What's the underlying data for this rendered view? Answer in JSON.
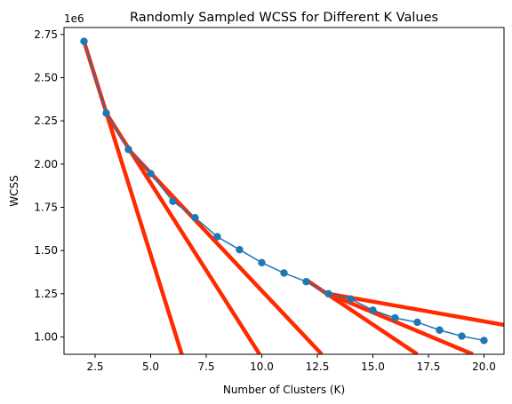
{
  "chart_data": {
    "type": "line",
    "title": "Randomly Sampled WCSS for Different K Values",
    "xlabel": "Number of Clusters (K)",
    "ylabel": "WCSS",
    "offset_text": "1e6",
    "xlim": [
      1.1,
      20.9
    ],
    "ylim": [
      0.9,
      2.79
    ],
    "x_ticks": [
      2.5,
      5.0,
      7.5,
      10.0,
      12.5,
      15.0,
      17.5,
      20.0
    ],
    "x_tick_labels": [
      "2.5",
      "5.0",
      "7.5",
      "10.0",
      "12.5",
      "15.0",
      "17.5",
      "20.0"
    ],
    "y_ticks": [
      1.0,
      1.25,
      1.5,
      1.75,
      2.0,
      2.25,
      2.5,
      2.75
    ],
    "y_tick_labels": [
      "1.00",
      "1.25",
      "1.50",
      "1.75",
      "2.00",
      "2.25",
      "2.50",
      "2.75"
    ],
    "grid": false,
    "series": [
      {
        "x": [
          2,
          3,
          4,
          5,
          6,
          7,
          8,
          9,
          10,
          11,
          12,
          13,
          14,
          15,
          16,
          17,
          18,
          19,
          20
        ],
        "values": [
          2.71,
          2.295,
          2.085,
          1.945,
          1.785,
          1.69,
          1.58,
          1.505,
          1.43,
          1.37,
          1.32,
          1.25,
          1.22,
          1.155,
          1.11,
          1.085,
          1.04,
          1.005,
          0.98
        ],
        "color": "#1f77b4"
      }
    ],
    "tangent_lines": [
      {
        "x": [
          2,
          6.4
        ],
        "values": [
          2.71,
          0.9
        ],
        "color": "#ff2a00"
      },
      {
        "x": [
          3,
          9.9
        ],
        "values": [
          2.295,
          0.9
        ],
        "color": "#ff2a00"
      },
      {
        "x": [
          4,
          12.7
        ],
        "values": [
          2.085,
          0.9
        ],
        "color": "#ff2a00"
      },
      {
        "x": [
          12,
          17.0
        ],
        "values": [
          1.33,
          0.9
        ],
        "color": "#ff2a00"
      },
      {
        "x": [
          13,
          19.5
        ],
        "values": [
          1.25,
          0.9
        ],
        "color": "#ff2a00"
      },
      {
        "x": [
          13,
          20.9
        ],
        "values": [
          1.25,
          1.07
        ],
        "color": "#ff2a00"
      }
    ]
  }
}
